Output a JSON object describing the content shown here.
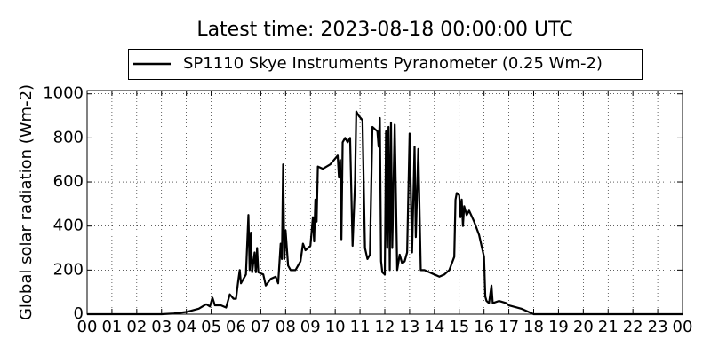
{
  "chart_data": {
    "type": "line",
    "title": "Latest time: 2023-08-18 00:00:00 UTC",
    "y_label": "Global solar radiation (Wm-2)",
    "x": [
      0,
      3.0,
      3.5,
      4.0,
      4.5,
      4.8,
      4.95,
      5.05,
      5.15,
      5.4,
      5.6,
      5.75,
      5.9,
      6.0,
      6.1,
      6.15,
      6.2,
      6.4,
      6.5,
      6.55,
      6.6,
      6.65,
      6.75,
      6.8,
      6.85,
      6.9,
      7.1,
      7.2,
      7.4,
      7.6,
      7.7,
      7.8,
      7.85,
      7.9,
      7.95,
      8.0,
      8.1,
      8.2,
      8.4,
      8.6,
      8.7,
      8.8,
      9.0,
      9.1,
      9.15,
      9.2,
      9.25,
      9.3,
      9.5,
      9.8,
      10.1,
      10.15,
      10.2,
      10.25,
      10.3,
      10.4,
      10.5,
      10.6,
      10.7,
      10.8,
      10.85,
      10.95,
      11.1,
      11.2,
      11.3,
      11.4,
      11.5,
      11.7,
      11.75,
      11.8,
      11.85,
      11.9,
      12.0,
      12.05,
      12.1,
      12.15,
      12.2,
      12.25,
      12.3,
      12.4,
      12.5,
      12.6,
      12.7,
      12.8,
      12.9,
      13.0,
      13.1,
      13.2,
      13.25,
      13.35,
      13.45,
      13.6,
      13.8,
      14.0,
      14.2,
      14.4,
      14.6,
      14.8,
      14.85,
      14.9,
      15.0,
      15.05,
      15.1,
      15.15,
      15.2,
      15.3,
      15.4,
      15.6,
      15.8,
      16.0,
      16.05,
      16.1,
      16.2,
      16.3,
      16.35,
      16.6,
      16.9,
      17.0,
      17.5,
      18.0,
      24
    ],
    "series": [
      {
        "name": "SP1110 Skye Instruments Pyranometer (0.25 Wm-2)",
        "color": "#000000",
        "values": [
          0,
          0,
          3,
          10,
          25,
          45,
          35,
          75,
          40,
          40,
          30,
          90,
          70,
          70,
          160,
          200,
          140,
          180,
          450,
          200,
          370,
          190,
          280,
          190,
          300,
          190,
          180,
          130,
          160,
          170,
          140,
          320,
          250,
          680,
          250,
          380,
          220,
          200,
          200,
          240,
          320,
          290,
          310,
          440,
          330,
          520,
          420,
          670,
          660,
          680,
          720,
          620,
          700,
          340,
          780,
          800,
          780,
          800,
          310,
          600,
          920,
          900,
          880,
          300,
          250,
          270,
          850,
          830,
          760,
          890,
          240,
          190,
          180,
          830,
          300,
          850,
          200,
          870,
          300,
          860,
          200,
          270,
          230,
          240,
          280,
          820,
          280,
          760,
          350,
          750,
          200,
          200,
          190,
          180,
          170,
          180,
          200,
          260,
          520,
          550,
          540,
          440,
          520,
          400,
          490,
          450,
          470,
          420,
          360,
          260,
          80,
          60,
          50,
          130,
          50,
          60,
          50,
          40,
          25,
          0,
          0
        ]
      }
    ],
    "xlim": [
      0,
      24
    ],
    "xticks": [
      {
        "value": 0,
        "label": "00"
      },
      {
        "value": 1,
        "label": "01"
      },
      {
        "value": 2,
        "label": "02"
      },
      {
        "value": 3,
        "label": "03"
      },
      {
        "value": 4,
        "label": "04"
      },
      {
        "value": 5,
        "label": "05"
      },
      {
        "value": 6,
        "label": "06"
      },
      {
        "value": 7,
        "label": "07"
      },
      {
        "value": 8,
        "label": "08"
      },
      {
        "value": 9,
        "label": "09"
      },
      {
        "value": 10,
        "label": "10"
      },
      {
        "value": 11,
        "label": "11"
      },
      {
        "value": 12,
        "label": "12"
      },
      {
        "value": 13,
        "label": "13"
      },
      {
        "value": 14,
        "label": "14"
      },
      {
        "value": 15,
        "label": "15"
      },
      {
        "value": 16,
        "label": "16"
      },
      {
        "value": 17,
        "label": "17"
      },
      {
        "value": 18,
        "label": "18"
      },
      {
        "value": 19,
        "label": "19"
      },
      {
        "value": 20,
        "label": "20"
      },
      {
        "value": 21,
        "label": "21"
      },
      {
        "value": 22,
        "label": "22"
      },
      {
        "value": 23,
        "label": "23"
      },
      {
        "value": 24,
        "label": "00"
      }
    ],
    "ylim": [
      0,
      1015
    ],
    "yticks": [
      0,
      200,
      400,
      600,
      800,
      1000
    ],
    "grid": true
  }
}
